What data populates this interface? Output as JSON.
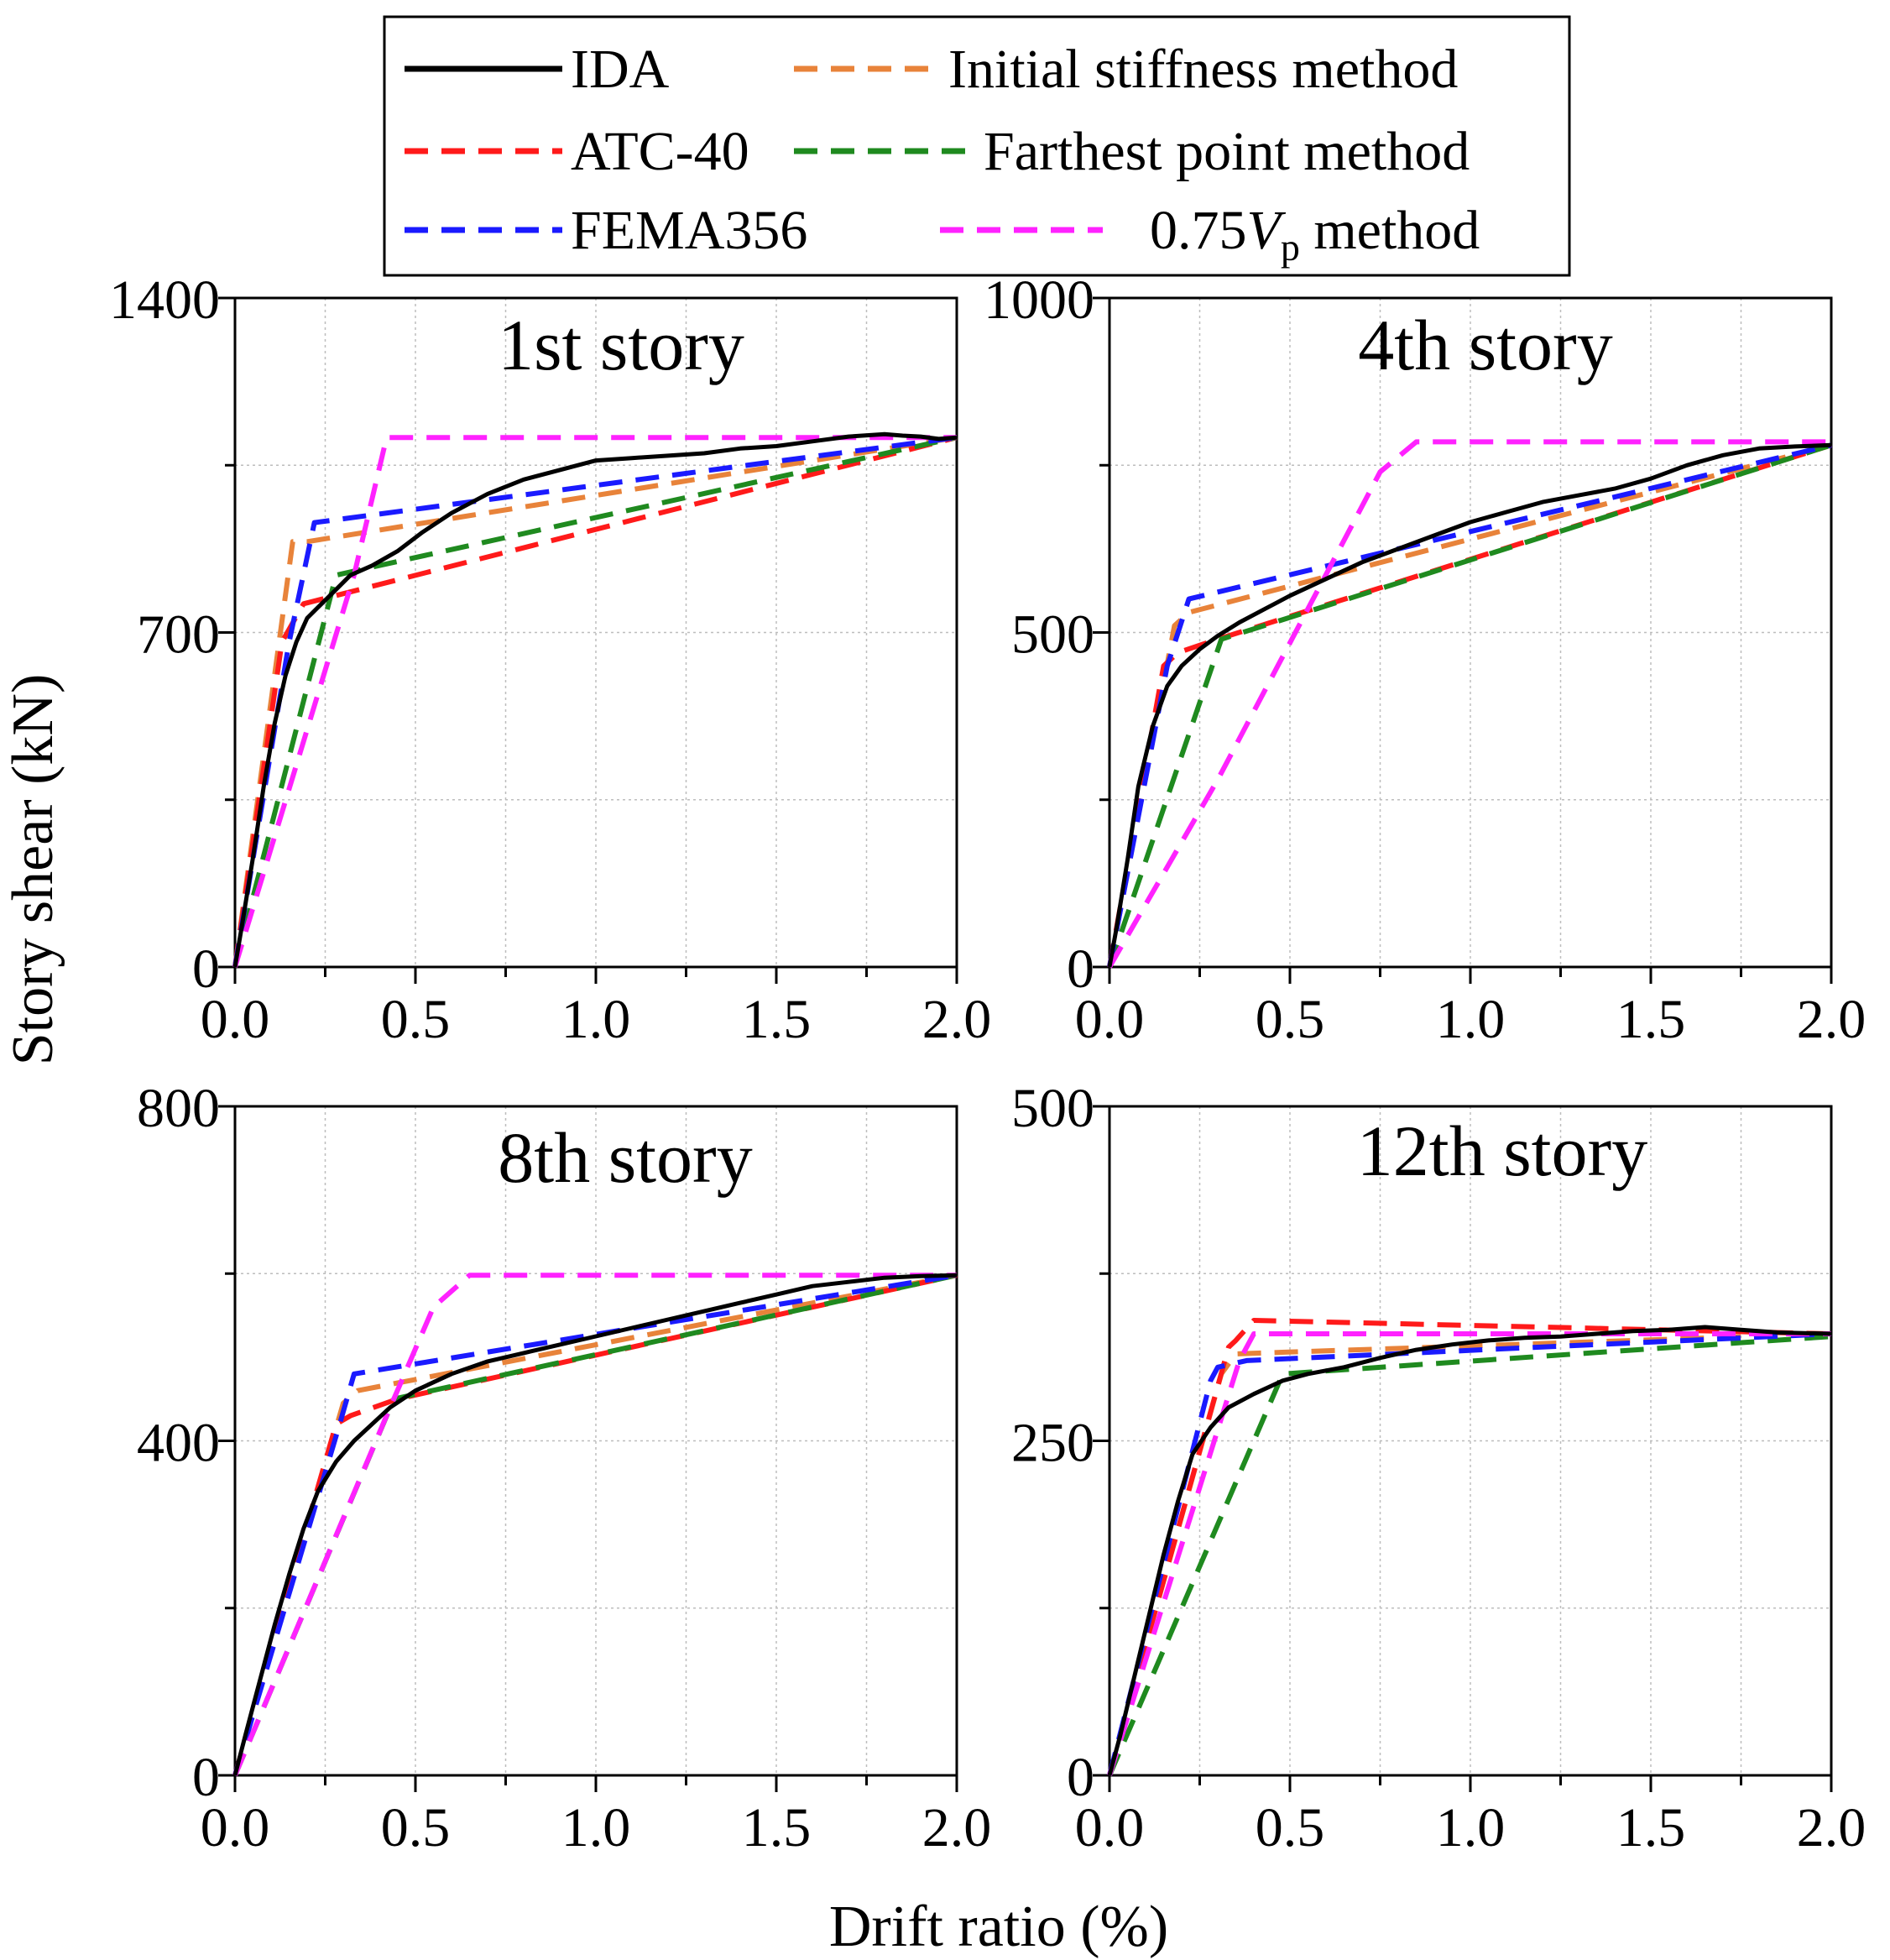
{
  "figure": {
    "ylabel": "Story shear (kN)",
    "xlabel": "Drift ratio (%)"
  },
  "legend": [
    {
      "label": "IDA",
      "color": "#000000",
      "dash": "solid"
    },
    {
      "label": "Initial stiffness method",
      "color": "#e8833a",
      "dash": "dashed"
    },
    {
      "label": "ATC-40",
      "color": "#ff1a1a",
      "dash": "dashed"
    },
    {
      "label": "Farthest point method",
      "color": "#1f8a1f",
      "dash": "dashed"
    },
    {
      "label": "FEMA356",
      "color": "#1a1aff",
      "dash": "dashed"
    },
    {
      "label_prefix": "0.75",
      "label_var": "V",
      "label_sub": "p",
      "label_suffix": "method",
      "color": "#ff22ff",
      "dash": "dashed"
    }
  ],
  "chart_data": [
    {
      "type": "line",
      "title": "1st story",
      "xlim": [
        0,
        2.0
      ],
      "ylim": [
        0,
        1400
      ],
      "xticks": [
        "0.0",
        "0.5",
        "1.0",
        "1.5",
        "2.0"
      ],
      "yticks": [
        "0",
        "700",
        "1400"
      ],
      "ytick_values": [
        0,
        700,
        1400
      ],
      "series": [
        {
          "name": "IDA",
          "x": [
            0,
            0.02,
            0.05,
            0.08,
            0.11,
            0.14,
            0.17,
            0.2,
            0.24,
            0.28,
            0.32,
            0.38,
            0.45,
            0.52,
            0.6,
            0.7,
            0.8,
            0.9,
            1.0,
            1.1,
            1.2,
            1.3,
            1.4,
            1.5,
            1.6,
            1.7,
            1.8,
            1.85,
            1.9,
            1.95,
            2.0
          ],
          "y": [
            0,
            90,
            230,
            380,
            510,
            610,
            680,
            730,
            760,
            790,
            820,
            840,
            870,
            910,
            950,
            990,
            1020,
            1040,
            1060,
            1065,
            1070,
            1075,
            1085,
            1090,
            1100,
            1110,
            1115,
            1112,
            1110,
            1105,
            1108
          ]
        },
        {
          "name": "Initial stiffness method",
          "x": [
            0,
            0.16,
            0.2,
            2.0
          ],
          "y": [
            0,
            890,
            890,
            1108
          ]
        },
        {
          "name": "ATC-40",
          "x": [
            0,
            0.13,
            0.19,
            2.0
          ],
          "y": [
            0,
            680,
            760,
            1108
          ]
        },
        {
          "name": "Farthest point method",
          "x": [
            0,
            0.28,
            2.0
          ],
          "y": [
            0,
            820,
            1108
          ]
        },
        {
          "name": "FEMA356",
          "x": [
            0,
            0.15,
            0.22,
            2.0
          ],
          "y": [
            0,
            680,
            930,
            1108
          ]
        },
        {
          "name": "0.75Vp method",
          "x": [
            0,
            0.33,
            0.42,
            2.0
          ],
          "y": [
            0,
            820,
            1108,
            1108
          ]
        }
      ]
    },
    {
      "type": "line",
      "title": "4th story",
      "xlim": [
        0,
        2.0
      ],
      "ylim": [
        0,
        1000
      ],
      "xticks": [
        "0.0",
        "0.5",
        "1.0",
        "1.5",
        "2.0"
      ],
      "yticks": [
        "0",
        "500",
        "1000"
      ],
      "ytick_values": [
        0,
        500,
        1000
      ],
      "series": [
        {
          "name": "IDA",
          "x": [
            0,
            0.02,
            0.05,
            0.08,
            0.12,
            0.16,
            0.2,
            0.25,
            0.3,
            0.36,
            0.43,
            0.5,
            0.6,
            0.7,
            0.8,
            0.9,
            1.0,
            1.1,
            1.2,
            1.3,
            1.4,
            1.5,
            1.6,
            1.7,
            1.8,
            1.9,
            2.0
          ],
          "y": [
            0,
            60,
            160,
            270,
            360,
            420,
            450,
            475,
            495,
            515,
            535,
            555,
            580,
            605,
            625,
            645,
            665,
            680,
            695,
            705,
            715,
            730,
            750,
            765,
            775,
            778,
            780
          ]
        },
        {
          "name": "Initial stiffness method",
          "x": [
            0,
            0.18,
            0.22,
            2.0
          ],
          "y": [
            0,
            510,
            530,
            780
          ]
        },
        {
          "name": "ATC-40",
          "x": [
            0,
            0.15,
            0.19,
            0.3,
            2.0
          ],
          "y": [
            0,
            450,
            470,
            490,
            780
          ]
        },
        {
          "name": "Farthest point method",
          "x": [
            0,
            0.31,
            2.0
          ],
          "y": [
            0,
            490,
            780
          ]
        },
        {
          "name": "FEMA356",
          "x": [
            0,
            0.16,
            0.22,
            2.0
          ],
          "y": [
            0,
            450,
            550,
            780
          ]
        },
        {
          "name": "0.75Vp method",
          "x": [
            0,
            0.3,
            0.75,
            0.85,
            2.0
          ],
          "y": [
            0,
            280,
            740,
            785,
            785
          ]
        }
      ]
    },
    {
      "type": "line",
      "title": "8th story",
      "xlim": [
        0,
        2.0
      ],
      "ylim": [
        0,
        800
      ],
      "xticks": [
        "0.0",
        "0.5",
        "1.0",
        "1.5",
        "2.0"
      ],
      "yticks": [
        "0",
        "400",
        "800"
      ],
      "ytick_values": [
        0,
        400,
        800
      ],
      "series": [
        {
          "name": "IDA",
          "x": [
            0,
            0.03,
            0.07,
            0.11,
            0.15,
            0.19,
            0.23,
            0.28,
            0.33,
            0.38,
            0.43,
            0.5,
            0.6,
            0.7,
            0.8,
            0.9,
            1.0,
            1.1,
            1.2,
            1.3,
            1.4,
            1.5,
            1.6,
            1.7,
            1.8,
            1.9,
            2.0
          ],
          "y": [
            0,
            50,
            115,
            180,
            240,
            295,
            340,
            375,
            400,
            420,
            440,
            460,
            480,
            495,
            505,
            515,
            525,
            535,
            545,
            555,
            565,
            575,
            585,
            590,
            595,
            597,
            598
          ]
        },
        {
          "name": "Initial stiffness method",
          "x": [
            0,
            0.3,
            0.34,
            2.0
          ],
          "y": [
            0,
            445,
            460,
            598
          ]
        },
        {
          "name": "ATC-40",
          "x": [
            0,
            0.28,
            0.32,
            0.45,
            2.0
          ],
          "y": [
            0,
            420,
            430,
            450,
            598
          ]
        },
        {
          "name": "Farthest point method",
          "x": [
            0,
            0.44,
            2.0
          ],
          "y": [
            0,
            450,
            598
          ]
        },
        {
          "name": "FEMA356",
          "x": [
            0,
            0.29,
            0.33,
            2.0
          ],
          "y": [
            0,
            420,
            480,
            598
          ]
        },
        {
          "name": "0.75Vp method",
          "x": [
            0,
            0.42,
            0.55,
            0.65,
            2.0
          ],
          "y": [
            0,
            430,
            560,
            598,
            598
          ]
        }
      ]
    },
    {
      "type": "line",
      "title": "12th story",
      "xlim": [
        0,
        2.0
      ],
      "ylim": [
        0,
        500
      ],
      "xticks": [
        "0.0",
        "0.5",
        "1.0",
        "1.5",
        "2.0"
      ],
      "yticks": [
        "0",
        "250",
        "500"
      ],
      "ytick_values": [
        0,
        250,
        500
      ],
      "series": [
        {
          "name": "IDA",
          "x": [
            0,
            0.03,
            0.07,
            0.11,
            0.15,
            0.19,
            0.23,
            0.28,
            0.33,
            0.4,
            0.48,
            0.55,
            0.65,
            0.75,
            0.85,
            0.95,
            1.05,
            1.15,
            1.25,
            1.35,
            1.45,
            1.55,
            1.65,
            1.75,
            1.85,
            2.0
          ],
          "y": [
            0,
            30,
            75,
            120,
            165,
            205,
            240,
            260,
            275,
            285,
            295,
            300,
            305,
            312,
            318,
            322,
            325,
            327,
            328,
            330,
            332,
            333,
            335,
            333,
            331,
            330
          ]
        },
        {
          "name": "Initial stiffness method",
          "x": [
            0,
            0.31,
            0.35,
            2.0
          ],
          "y": [
            0,
            300,
            315,
            330
          ]
        },
        {
          "name": "ATC-40",
          "x": [
            0,
            0.33,
            0.35,
            0.4,
            2.0
          ],
          "y": [
            0,
            320,
            325,
            340,
            330
          ]
        },
        {
          "name": "Farthest point method",
          "x": [
            0,
            0.48,
            2.0
          ],
          "y": [
            0,
            300,
            328
          ]
        },
        {
          "name": "FEMA356",
          "x": [
            0,
            0.28,
            0.3,
            0.38,
            2.0
          ],
          "y": [
            0,
            295,
            305,
            310,
            330
          ]
        },
        {
          "name": "0.75Vp method",
          "x": [
            0,
            0.36,
            0.4,
            2.0
          ],
          "y": [
            0,
            310,
            330,
            330
          ]
        }
      ]
    }
  ]
}
